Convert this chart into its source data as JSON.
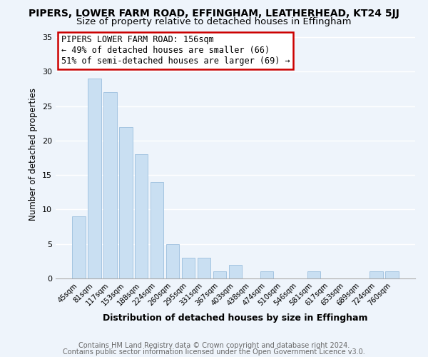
{
  "title": "PIPERS, LOWER FARM ROAD, EFFINGHAM, LEATHERHEAD, KT24 5JJ",
  "subtitle": "Size of property relative to detached houses in Effingham",
  "xlabel": "Distribution of detached houses by size in Effingham",
  "ylabel": "Number of detached properties",
  "bar_labels": [
    "45sqm",
    "81sqm",
    "117sqm",
    "153sqm",
    "188sqm",
    "224sqm",
    "260sqm",
    "295sqm",
    "331sqm",
    "367sqm",
    "403sqm",
    "438sqm",
    "474sqm",
    "510sqm",
    "546sqm",
    "581sqm",
    "617sqm",
    "653sqm",
    "689sqm",
    "724sqm",
    "760sqm"
  ],
  "bar_values": [
    9,
    29,
    27,
    22,
    18,
    14,
    5,
    3,
    3,
    1,
    2,
    0,
    1,
    0,
    0,
    1,
    0,
    0,
    0,
    1,
    1
  ],
  "bar_color": "#c9dff2",
  "bar_edge_color": "#9bbedd",
  "annotation_line1": "PIPERS LOWER FARM ROAD: 156sqm",
  "annotation_line2": "← 49% of detached houses are smaller (66)",
  "annotation_line3": "51% of semi-detached houses are larger (69) →",
  "annotation_box_color": "#ffffff",
  "annotation_box_edge_color": "#cc0000",
  "ylim": [
    0,
    36
  ],
  "yticks": [
    0,
    5,
    10,
    15,
    20,
    25,
    30,
    35
  ],
  "footer_line1": "Contains HM Land Registry data © Crown copyright and database right 2024.",
  "footer_line2": "Contains public sector information licensed under the Open Government Licence v3.0.",
  "background_color": "#eef4fb",
  "plot_bg_color": "#eef4fb",
  "grid_color": "#ffffff",
  "title_fontsize": 10,
  "subtitle_fontsize": 9.5,
  "xlabel_fontsize": 9,
  "ylabel_fontsize": 8.5,
  "footer_fontsize": 7,
  "annotation_fontsize": 8.5
}
